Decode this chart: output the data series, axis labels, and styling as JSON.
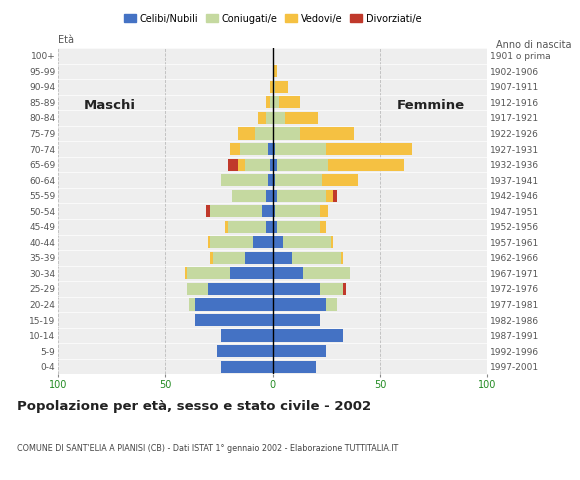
{
  "age_groups": [
    "0-4",
    "5-9",
    "10-14",
    "15-19",
    "20-24",
    "25-29",
    "30-34",
    "35-39",
    "40-44",
    "45-49",
    "50-54",
    "55-59",
    "60-64",
    "65-69",
    "70-74",
    "75-79",
    "80-84",
    "85-89",
    "90-94",
    "95-99",
    "100+"
  ],
  "birth_years": [
    "1997-2001",
    "1992-1996",
    "1987-1991",
    "1982-1986",
    "1977-1981",
    "1972-1976",
    "1967-1971",
    "1962-1966",
    "1957-1961",
    "1952-1956",
    "1947-1951",
    "1942-1946",
    "1937-1941",
    "1932-1936",
    "1927-1931",
    "1922-1926",
    "1917-1921",
    "1912-1916",
    "1907-1911",
    "1902-1906",
    "1901 o prima"
  ],
  "males": {
    "celibi": [
      24,
      26,
      24,
      36,
      36,
      30,
      20,
      13,
      9,
      3,
      5,
      3,
      2,
      1,
      2,
      0,
      0,
      0,
      0,
      0,
      0
    ],
    "coniugati": [
      0,
      0,
      0,
      0,
      3,
      10,
      20,
      15,
      20,
      18,
      24,
      16,
      22,
      12,
      13,
      8,
      3,
      1,
      0,
      0,
      0
    ],
    "vedovi": [
      0,
      0,
      0,
      0,
      0,
      0,
      1,
      1,
      1,
      1,
      0,
      0,
      0,
      3,
      5,
      8,
      4,
      2,
      1,
      0,
      0
    ],
    "divorziati": [
      0,
      0,
      0,
      0,
      0,
      0,
      0,
      0,
      0,
      0,
      2,
      0,
      0,
      5,
      0,
      0,
      0,
      0,
      0,
      0,
      0
    ]
  },
  "females": {
    "nubili": [
      20,
      25,
      33,
      22,
      25,
      22,
      14,
      9,
      5,
      2,
      1,
      2,
      1,
      2,
      1,
      0,
      0,
      0,
      0,
      0,
      0
    ],
    "coniugate": [
      0,
      0,
      0,
      0,
      5,
      11,
      22,
      23,
      22,
      20,
      21,
      23,
      22,
      24,
      24,
      13,
      6,
      3,
      1,
      0,
      0
    ],
    "vedove": [
      0,
      0,
      0,
      0,
      0,
      0,
      0,
      1,
      1,
      3,
      4,
      3,
      17,
      35,
      40,
      25,
      15,
      10,
      6,
      2,
      0
    ],
    "divorziate": [
      0,
      0,
      0,
      0,
      0,
      1,
      0,
      0,
      0,
      0,
      0,
      2,
      0,
      0,
      0,
      0,
      0,
      0,
      0,
      0,
      0
    ]
  },
  "colors": {
    "celibi": "#4472c4",
    "coniugati": "#c5d9a0",
    "vedovi": "#f5c142",
    "divorziati": "#c0392b"
  },
  "title": "Popolazione per età, sesso e stato civile - 2002",
  "subtitle": "COMUNE DI SANT'ELIA A PIANISI (CB) - Dati ISTAT 1° gennaio 2002 - Elaborazione TUTTITALIA.IT",
  "xlim": 100,
  "bg_color": "#ffffff",
  "grid_color": "#bbbbbb",
  "legend_labels": [
    "Celibi/Nubili",
    "Coniugati/e",
    "Vedovi/e",
    "Divorziati/e"
  ]
}
